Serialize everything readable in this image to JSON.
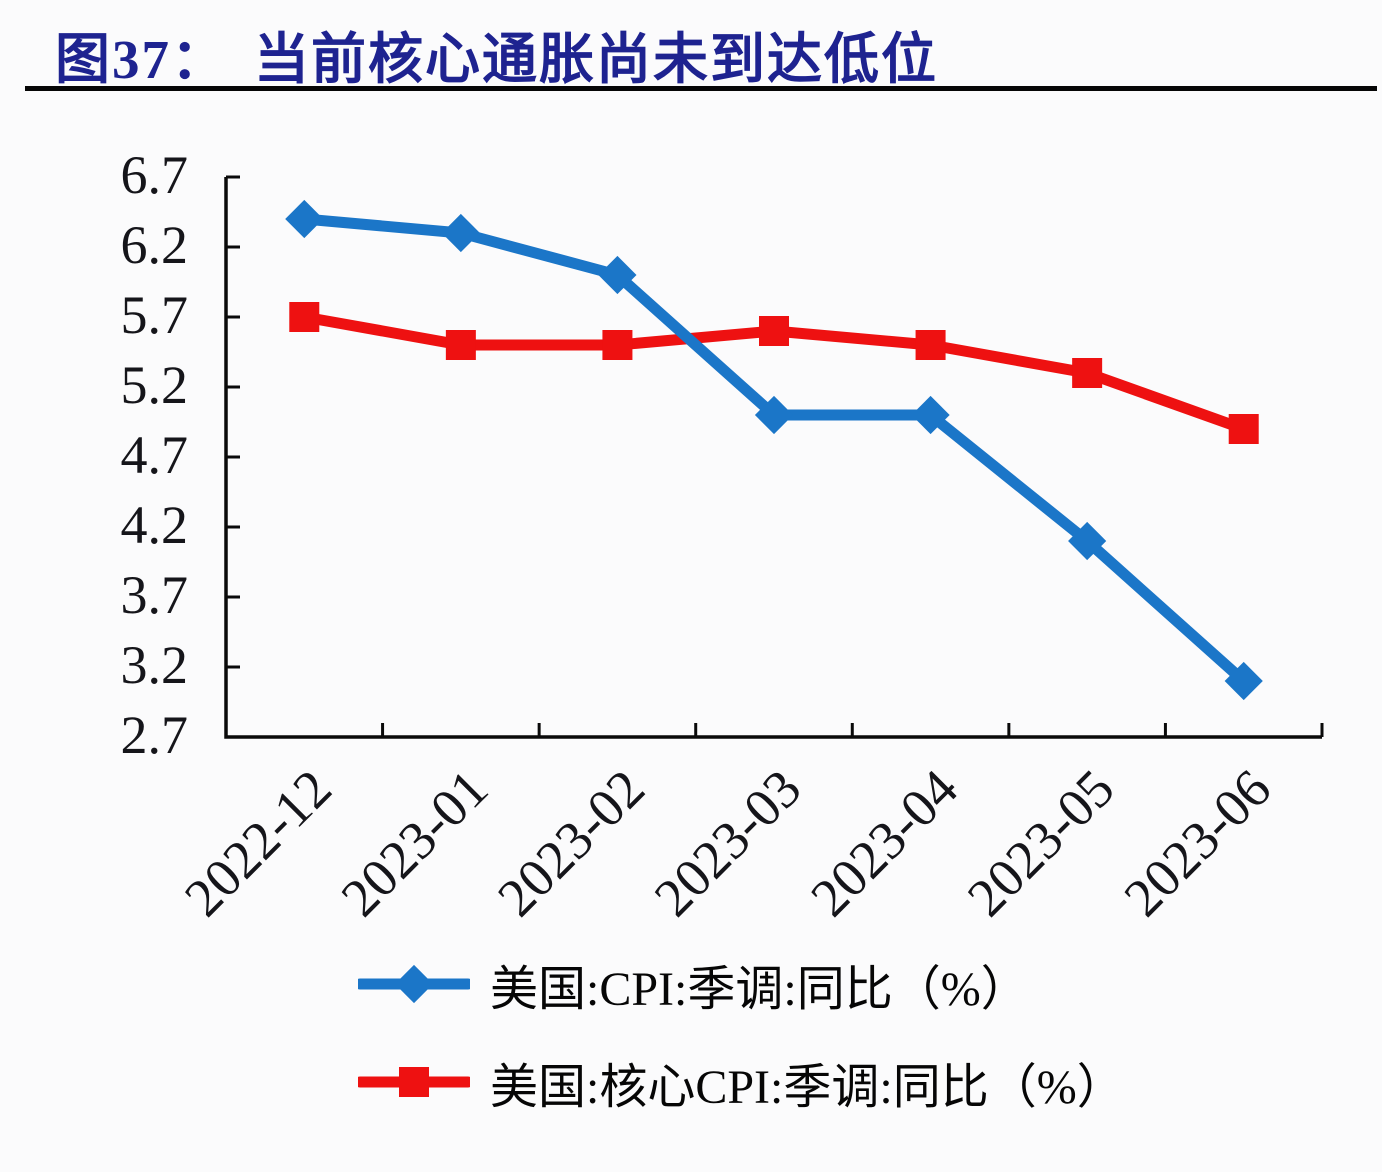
{
  "header": {
    "title_prefix": "图37：",
    "title_text": "当前核心通胀尚未到达低位",
    "title_color": "#1e2390"
  },
  "chart_data": {
    "type": "line",
    "title": "图37：当前核心通胀尚未到达低位",
    "categories": [
      "2022-12",
      "2023-01",
      "2023-02",
      "2023-03",
      "2023-04",
      "2023-05",
      "2023-06"
    ],
    "series": [
      {
        "name": "美国:CPI:季调:同比（%）",
        "color": "#1b76c8",
        "marker": "diamond",
        "values": [
          6.4,
          6.3,
          6.0,
          5.0,
          5.0,
          4.1,
          3.1
        ]
      },
      {
        "name": "美国:核心CPI:季调:同比（%）",
        "color": "#ee1111",
        "marker": "square",
        "values": [
          5.7,
          5.5,
          5.5,
          5.6,
          5.5,
          5.3,
          4.9
        ]
      }
    ],
    "xlabel": "",
    "ylabel": "",
    "ylim": [
      2.7,
      6.7
    ],
    "ytick_step": 0.5,
    "yticks": [
      "6.7",
      "6.2",
      "5.7",
      "5.2",
      "4.7",
      "4.2",
      "3.7",
      "3.2",
      "2.7"
    ],
    "grid": false,
    "legend_position": "bottom",
    "axis_color": "#0a0a0a"
  }
}
